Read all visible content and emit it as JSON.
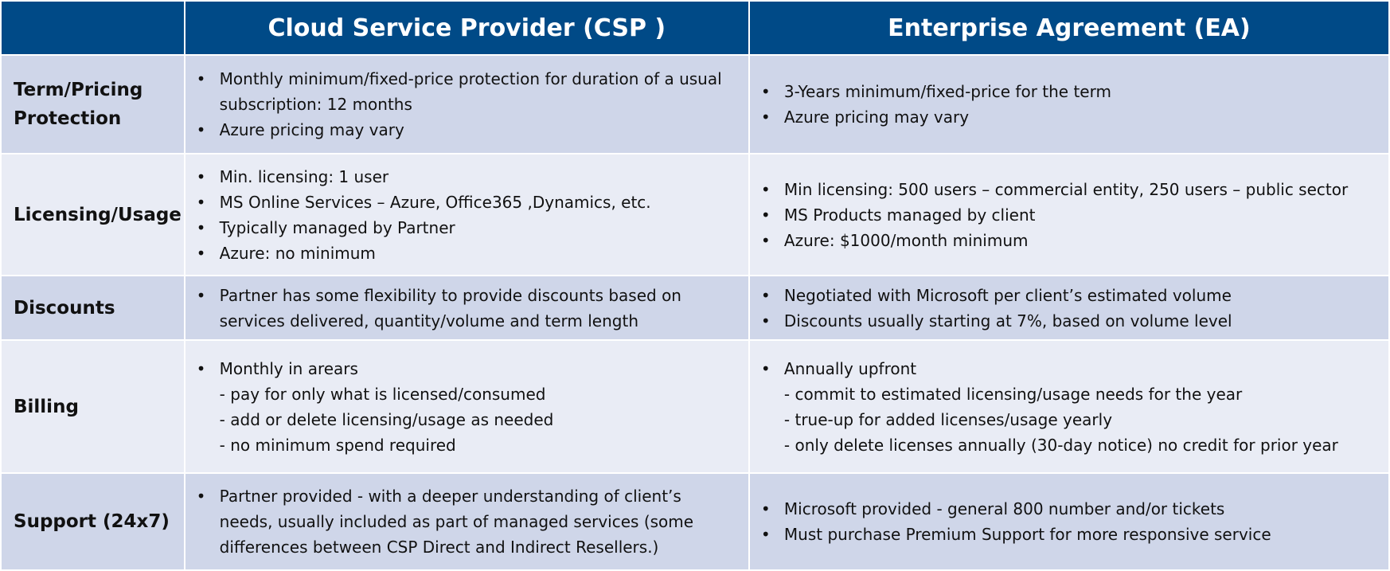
{
  "headers": {
    "blank": "",
    "csp": "Cloud Service Provider (CSP )",
    "ea": "Enterprise Agreement (EA)"
  },
  "rows": [
    {
      "label_lines": [
        "Term/Pricing",
        "Protection"
      ],
      "csp": [
        {
          "kind": "bullet",
          "text": "Monthly minimum/fixed-price protection for duration of a usual"
        },
        {
          "kind": "cont",
          "text": "subscription: 12 months"
        },
        {
          "kind": "bullet",
          "text": "Azure pricing may vary"
        }
      ],
      "ea": [
        {
          "kind": "bullet",
          "text": "3-Years minimum/fixed-price for the term"
        },
        {
          "kind": "bullet",
          "text": "Azure pricing may vary"
        }
      ]
    },
    {
      "label_lines": [
        "Licensing/Usage"
      ],
      "csp": [
        {
          "kind": "bullet",
          "text": "Min. licensing: 1 user"
        },
        {
          "kind": "bullet",
          "text": "MS Online Services –  Azure, Office365 ,Dynamics, etc."
        },
        {
          "kind": "bullet",
          "text": "Typically managed by Partner"
        },
        {
          "kind": "bullet",
          "text": "Azure: no minimum"
        }
      ],
      "ea": [
        {
          "kind": "bullet",
          "text": "Min licensing: 500 users –  commercial entity, 250 users –  public sector"
        },
        {
          "kind": "bullet",
          "text": "MS Products managed by client"
        },
        {
          "kind": "bullet",
          "text": "Azure: $1000/month minimum"
        }
      ]
    },
    {
      "label_lines": [
        "Discounts"
      ],
      "csp": [
        {
          "kind": "bullet",
          "text": "Partner has some flexibility to provide discounts based on"
        },
        {
          "kind": "cont",
          "text": "services delivered, quantity/volume and term length"
        }
      ],
      "ea": [
        {
          "kind": "bullet",
          "text": "Negotiated with Microsoft per client’s estimated volume"
        },
        {
          "kind": "bullet",
          "text": "Discounts usually starting at 7%, based on volume level"
        }
      ]
    },
    {
      "label_lines": [
        "Billing"
      ],
      "csp": [
        {
          "kind": "bullet",
          "text": "Monthly in arears"
        },
        {
          "kind": "sub",
          "text": "-  pay for only what is licensed/consumed"
        },
        {
          "kind": "sub",
          "text": "-  add or delete licensing/usage as needed"
        },
        {
          "kind": "sub",
          "text": "-  no minimum spend required"
        }
      ],
      "ea": [
        {
          "kind": "bullet",
          "text": "Annually upfront"
        },
        {
          "kind": "sub",
          "text": "-  commit to estimated licensing/usage needs for the year"
        },
        {
          "kind": "sub",
          "text": "-  true-up for added licenses/usage yearly"
        },
        {
          "kind": "sub",
          "text": "-  only delete licenses annually (30-day notice) no credit for prior year"
        }
      ]
    },
    {
      "label_lines": [
        "Support (24x7)"
      ],
      "csp": [
        {
          "kind": "bullet",
          "text": "Partner provided - with a deeper understanding of client’s"
        },
        {
          "kind": "cont",
          "text": "needs, usually included as part of managed services (some"
        },
        {
          "kind": "cont",
          "text": "differences between CSP Direct and Indirect Resellers.)"
        }
      ],
      "ea": [
        {
          "kind": "bullet",
          "text": "Microsoft provided - general 800 number and/or tickets"
        },
        {
          "kind": "bullet",
          "text": "Must purchase Premium Support for more responsive service"
        }
      ]
    }
  ]
}
